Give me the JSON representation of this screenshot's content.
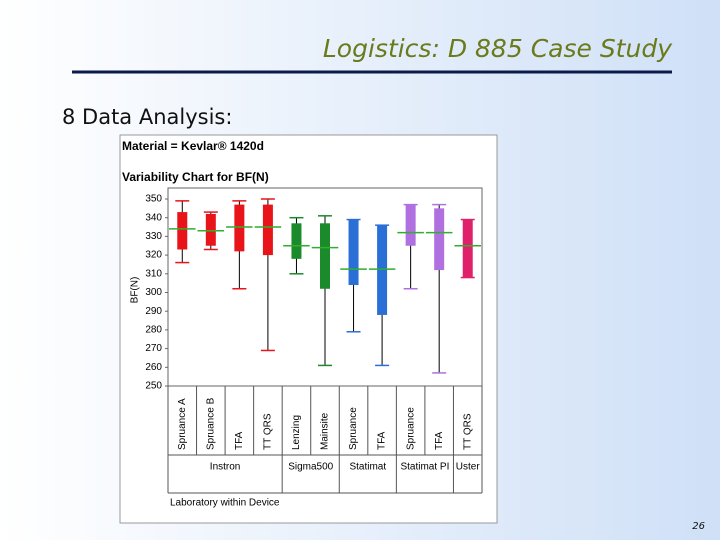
{
  "slide": {
    "title": "Logistics: D 885 Case Study",
    "heading": "8  Data Analysis:",
    "page_number": "26"
  },
  "chart_data": {
    "type": "variability",
    "title": "Material = Kevlar® 1420d",
    "subtitle": "Variability Chart for BF(N)",
    "y_label": "BF(N)",
    "x_label": "Laboratory within Device",
    "ylim": [
      250,
      350
    ],
    "yticks": [
      250,
      260,
      270,
      280,
      290,
      300,
      310,
      320,
      330,
      340,
      350
    ],
    "mean_color": "#2fae2f",
    "groups": [
      {
        "name": "Instron",
        "labs": [
          {
            "name": "Spruance A",
            "color": "#e8141a",
            "min": 316,
            "max": 349,
            "q1": 323,
            "q3": 343,
            "mean": 334
          },
          {
            "name": "Spruance B",
            "color": "#e8141a",
            "min": 323,
            "max": 343,
            "q1": 325,
            "q3": 342,
            "mean": 333
          },
          {
            "name": "TFA",
            "color": "#e8141a",
            "min": 302,
            "max": 349,
            "q1": 322,
            "q3": 347,
            "mean": 335
          },
          {
            "name": "TT QRS",
            "color": "#e8141a",
            "min": 269,
            "max": 350,
            "q1": 320,
            "q3": 347,
            "mean": 335
          }
        ]
      },
      {
        "name": "Sigma500",
        "labs": [
          {
            "name": "Lenzing",
            "color": "#1a8a2a",
            "min": 310,
            "max": 340,
            "q1": 318,
            "q3": 337,
            "mean": 325
          },
          {
            "name": "Mainsite",
            "color": "#1a8a2a",
            "min": 261,
            "max": 341,
            "q1": 302,
            "q3": 337,
            "mean": 324
          }
        ]
      },
      {
        "name": "Statimat",
        "labs": [
          {
            "name": "Spruance",
            "color": "#2a6fd6",
            "min": 279,
            "max": 339,
            "q1": 304,
            "q3": 339,
            "mean": 312.5
          },
          {
            "name": "TFA",
            "color": "#2a6fd6",
            "min": 261,
            "max": 336,
            "q1": 288,
            "q3": 336,
            "mean": 312.5
          }
        ]
      },
      {
        "name": "Statimat PI",
        "labs": [
          {
            "name": "Spruance",
            "color": "#b070e0",
            "min": 302,
            "max": 347,
            "q1": 325,
            "q3": 347,
            "mean": 332
          },
          {
            "name": "TFA",
            "color": "#b070e0",
            "min": 257,
            "max": 347,
            "q1": 312,
            "q3": 345,
            "mean": 332
          }
        ]
      },
      {
        "name": "Uster",
        "labs": [
          {
            "name": "TT QRS",
            "color": "#e0206a",
            "min": 308,
            "max": 339,
            "q1": 308,
            "q3": 339,
            "mean": 325
          }
        ]
      }
    ]
  }
}
